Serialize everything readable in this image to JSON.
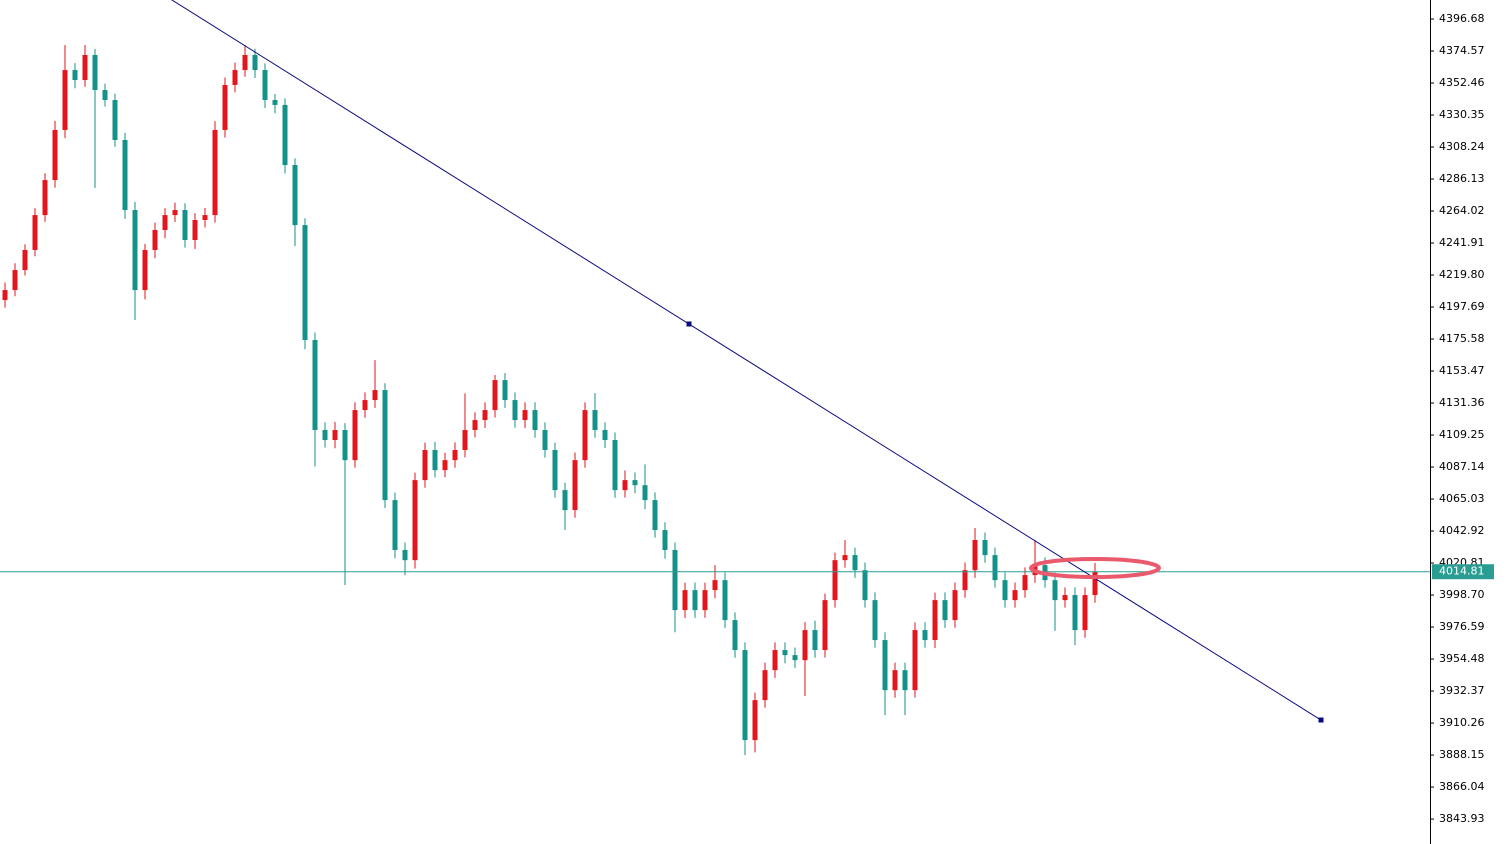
{
  "chart_data": {
    "type": "candlestick",
    "open": [
      4202.5,
      4209.4,
      4223.2,
      4237.1,
      4261.2,
      4285.4,
      4320.0,
      4361.4,
      4354.5,
      4371.8,
      4347.6,
      4340.7,
      4313.1,
      4264.7,
      4209.4,
      4237.1,
      4250.9,
      4261.2,
      4264.7,
      4244.0,
      4257.8,
      4261.2,
      4320.0,
      4351.1,
      4361.4,
      4371.8,
      4361.4,
      4340.7,
      4337.3,
      4295.8,
      4254.3,
      4174.9,
      4112.7,
      4105.8,
      4112.7,
      4091.9,
      4126.5,
      4133.4,
      4140.3,
      4064.3,
      4029.8,
      4022.8,
      4078.1,
      4098.9,
      4085.0,
      4091.9,
      4098.9,
      4112.7,
      4119.6,
      4126.5,
      4147.2,
      4133.4,
      4119.6,
      4126.5,
      4112.7,
      4098.9,
      4071.2,
      4057.4,
      4091.9,
      4126.5,
      4112.7,
      4105.8,
      4071.2,
      4078.1,
      4074.6,
      4064.3,
      4043.6,
      4029.8,
      3988.3,
      4002.1,
      3988.3,
      4002.1,
      4009.0,
      3981.4,
      3960.7,
      3898.5,
      3926.1,
      3946.8,
      3960.7,
      3957.2,
      3953.7,
      3974.5,
      3960.7,
      3995.2,
      4022.8,
      4026.3,
      4015.9,
      3995.2,
      3967.6,
      3933.0,
      3946.8,
      3933.0,
      3974.5,
      3967.6,
      3995.2,
      3981.4,
      4002.1,
      4015.9,
      4036.7,
      4026.3,
      4009.0,
      3995.2,
      4002.1,
      4012.5,
      4019.4,
      4009.0,
      3995.2,
      3998.7,
      3974.5,
      3998.7
    ],
    "high": [
      4214.6,
      4227.9,
      4241.0,
      4266.0,
      4290.1,
      4326.3,
      4378.7,
      4366.2,
      4378.7,
      4376.0,
      4352.0,
      4345.1,
      4318.0,
      4270.3,
      4241.3,
      4256.0,
      4266.0,
      4269.8,
      4269.4,
      4262.5,
      4266.1,
      4326.0,
      4356.3,
      4366.5,
      4378.7,
      4376.1,
      4366.0,
      4344.9,
      4341.8,
      4300.4,
      4259.0,
      4180.1,
      4118.0,
      4118.3,
      4117.5,
      4131.8,
      4138.7,
      4161.0,
      4145.0,
      4069.5,
      4035.0,
      4083.3,
      4104.0,
      4104.5,
      4097.0,
      4104.2,
      4138.0,
      4125.0,
      4131.8,
      4150.7,
      4152.0,
      4138.6,
      4131.8,
      4131.9,
      4118.0,
      4104.0,
      4076.4,
      4097.2,
      4131.8,
      4138.2,
      4118.0,
      4111.0,
      4084.8,
      4083.4,
      4089.0,
      4069.6,
      4049.0,
      4035.0,
      4007.3,
      4007.4,
      4007.3,
      4019.4,
      4014.3,
      3986.7,
      3966.0,
      3931.3,
      3952.0,
      3966.0,
      3966.0,
      3962.5,
      3980.0,
      3981.0,
      3999.6,
      4028.0,
      4036.7,
      4031.5,
      4021.2,
      4000.5,
      3973.0,
      3952.0,
      3952.0,
      3979.8,
      3980.0,
      4000.4,
      4000.5,
      4007.4,
      4021.2,
      4045.0,
      4041.9,
      4031.5,
      4014.3,
      4007.4,
      4017.8,
      4036.7,
      4024.7,
      4014.3,
      4004.0,
      4004.0,
      4004.0,
      4020.8
    ],
    "low": [
      4197.3,
      4205.1,
      4219.5,
      4232.8,
      4256.5,
      4280.2,
      4314.4,
      4348.8,
      4349.9,
      4280.0,
      4336.2,
      4308.4,
      4258.6,
      4188.7,
      4203.0,
      4231.5,
      4245.2,
      4256.4,
      4238.7,
      4237.9,
      4252.6,
      4256.0,
      4314.7,
      4346.0,
      4356.8,
      4355.9,
      4335.2,
      4331.6,
      4289.9,
      4239.8,
      4168.5,
      4087.5,
      4100.6,
      4100.1,
      4005.6,
      4086.7,
      4121.2,
      4128.0,
      4058.8,
      4024.0,
      4012.5,
      4017.0,
      4072.8,
      4079.9,
      4080.1,
      4086.6,
      4093.8,
      4107.6,
      4114.1,
      4121.3,
      4128.0,
      4114.3,
      4114.0,
      4107.4,
      4093.6,
      4066.0,
      4043.6,
      4052.1,
      4086.6,
      4107.4,
      4100.4,
      4065.9,
      4066.0,
      4069.0,
      4058.0,
      4038.4,
      4023.9,
      3973.0,
      3982.8,
      3982.9,
      3983.0,
      3996.5,
      3976.0,
      3955.4,
      3888.1,
      3890.0,
      3920.8,
      3941.5,
      3951.5,
      3948.4,
      3928.9,
      3955.4,
      3955.5,
      3990.0,
      4017.6,
      4010.6,
      3990.0,
      3962.3,
      3915.7,
      3927.7,
      3915.7,
      3927.8,
      3962.3,
      3962.0,
      3976.0,
      3976.1,
      3996.8,
      4010.6,
      4021.0,
      4003.7,
      3990.0,
      3990.0,
      3996.8,
      4007.2,
      4003.7,
      3974.0,
      3990.0,
      3964.1,
      3969.2,
      3993.4
    ],
    "close": [
      4209.4,
      4223.2,
      4237.1,
      4261.2,
      4285.4,
      4320.0,
      4361.4,
      4354.5,
      4371.8,
      4347.6,
      4340.7,
      4313.1,
      4264.7,
      4209.4,
      4237.1,
      4250.9,
      4261.2,
      4264.7,
      4244.0,
      4257.8,
      4261.2,
      4320.0,
      4351.1,
      4361.4,
      4371.8,
      4361.4,
      4340.7,
      4337.3,
      4295.8,
      4254.3,
      4174.9,
      4112.7,
      4105.8,
      4112.7,
      4091.9,
      4126.5,
      4133.4,
      4140.3,
      4064.3,
      4029.8,
      4022.8,
      4078.1,
      4098.9,
      4085.0,
      4091.9,
      4098.9,
      4112.7,
      4119.6,
      4126.5,
      4147.2,
      4133.4,
      4119.6,
      4126.5,
      4112.7,
      4098.9,
      4071.2,
      4057.4,
      4091.9,
      4126.5,
      4112.7,
      4105.8,
      4071.2,
      4078.1,
      4074.6,
      4064.3,
      4043.6,
      4029.8,
      3988.3,
      4002.1,
      3988.3,
      4002.1,
      4009.0,
      3981.4,
      3960.7,
      3898.5,
      3926.1,
      3946.8,
      3960.7,
      3957.2,
      3953.7,
      3974.5,
      3960.7,
      3995.2,
      4022.8,
      4026.3,
      4015.9,
      3995.2,
      3967.6,
      3933.0,
      3946.8,
      3933.0,
      3974.5,
      3967.6,
      3995.2,
      3981.4,
      4002.1,
      4015.9,
      4036.7,
      4026.3,
      4009.0,
      3995.2,
      4002.1,
      4012.5,
      4019.4,
      4009.0,
      3995.2,
      3998.7,
      3974.5,
      3998.7,
      4014.81
    ],
    "up_color": "#e3161d",
    "down_color": "#14918a",
    "ylim": [
      3826.7,
      4409.8
    ],
    "yticks": [
      4396.68,
      4374.57,
      4352.46,
      4330.35,
      4308.24,
      4286.13,
      4264.02,
      4241.91,
      {
        "value": 4219.8,
        "label": "4219.80"
      },
      4197.69,
      4175.58,
      4153.47,
      4131.36,
      4109.25,
      4087.14,
      4065.03,
      4042.92,
      4020.81,
      {
        "value": 3998.7,
        "label": "3998.70"
      },
      3976.59,
      3954.48,
      3932.37,
      3910.26,
      3888.15,
      3866.04,
      3843.93
    ],
    "current_price": 4014.81,
    "price_line_color": "#2a9d93",
    "trendline": {
      "points": [
        [
          68.4,
          4185.96
        ],
        [
          131.6,
          3912.35
        ]
      ],
      "color": "#0a0a80"
    }
  }
}
